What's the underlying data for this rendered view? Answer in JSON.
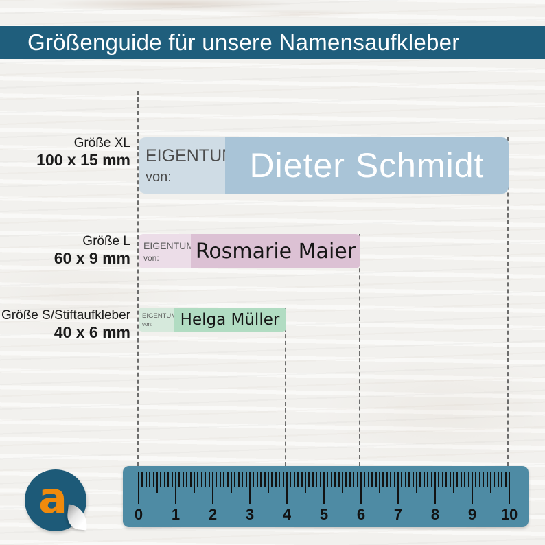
{
  "header": {
    "title": "Größenguide für unsere Namensaufkleber",
    "bg": "#1f5e7c",
    "text_color": "#ffffff"
  },
  "stickers": [
    {
      "size_label": "Größe XL",
      "dimensions": "100 x 15 mm",
      "owner_label": "EIGENTUM",
      "owner_sublabel": "von:",
      "name": "Dieter Schmidt",
      "left_bg": "#cfdce5",
      "right_bg": "#a9c4d7",
      "name_color": "#ffffff",
      "owner_text_color": "#4b4b4b"
    },
    {
      "size_label": "Größe L",
      "dimensions": "60 x 9 mm",
      "owner_label": "EIGENTUM",
      "owner_sublabel": "von:",
      "name": "Rosmarie Maier",
      "left_bg": "#ecdde8",
      "right_bg": "#dcc1d4",
      "name_color": "#161616",
      "owner_text_color": "#5d5d5d"
    },
    {
      "size_label": "Größe S/Stiftaufkleber",
      "dimensions": "40 x 6 mm",
      "owner_label": "EIGENTUM",
      "owner_sublabel": "von:",
      "name": "Helga Müller",
      "left_bg": "#d6e9dc",
      "right_bg": "#b1dcc2",
      "name_color": "#161616",
      "owner_text_color": "#5d5d5d"
    }
  ],
  "ruler": {
    "bg": "#4e8ba4",
    "tick_color": "#121212",
    "numbers": [
      "0",
      "1",
      "2",
      "3",
      "4",
      "5",
      "6",
      "7",
      "8",
      "9",
      "10"
    ]
  },
  "logo": {
    "letter": "a",
    "circle_color": "#1d5a78",
    "letter_color": "#f08a0c"
  }
}
